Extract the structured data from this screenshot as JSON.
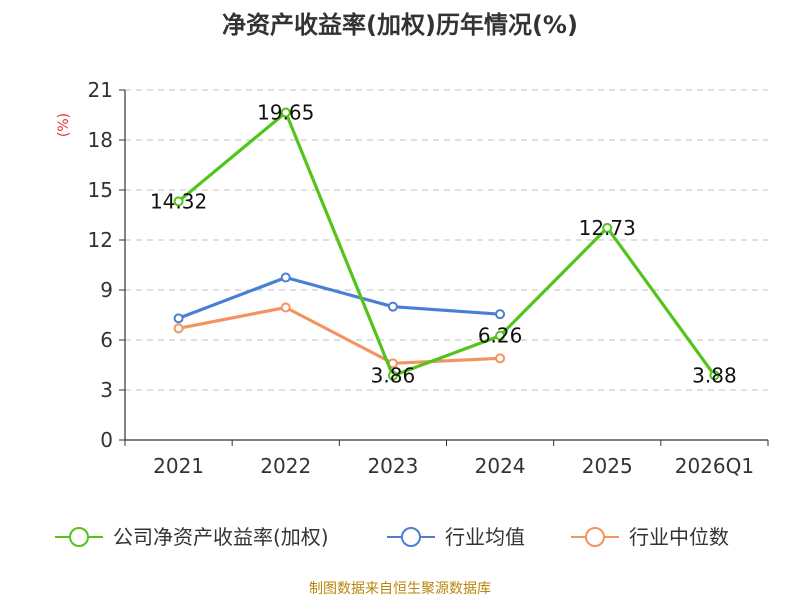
{
  "chart_data": {
    "type": "line",
    "title": "净资产收益率(加权)历年情况(%)",
    "ylabel": "(%)",
    "xlabel": "",
    "categories": [
      "2021",
      "2022",
      "2023",
      "2024",
      "2025",
      "2026Q1"
    ],
    "ylim": [
      0,
      21
    ],
    "yticks": [
      0,
      3,
      6,
      9,
      12,
      15,
      18,
      21
    ],
    "grid": true,
    "legend_position": "bottom",
    "series": [
      {
        "name": "公司净资产收益率(加权)",
        "color": "#52c41a",
        "values": [
          14.32,
          19.65,
          3.86,
          6.26,
          12.73,
          3.88
        ],
        "labels": [
          "14.32",
          "19.65",
          "3.86",
          "6.26",
          "12.73",
          "3.88"
        ]
      },
      {
        "name": "行业均值",
        "color": "#4a7fd4",
        "values": [
          7.3,
          9.75,
          8.0,
          7.55,
          null,
          null
        ]
      },
      {
        "name": "行业中位数",
        "color": "#f4935f",
        "values": [
          6.7,
          7.95,
          4.6,
          4.9,
          null,
          null
        ]
      }
    ]
  },
  "source_text": "制图数据来自恒生聚源数据库"
}
